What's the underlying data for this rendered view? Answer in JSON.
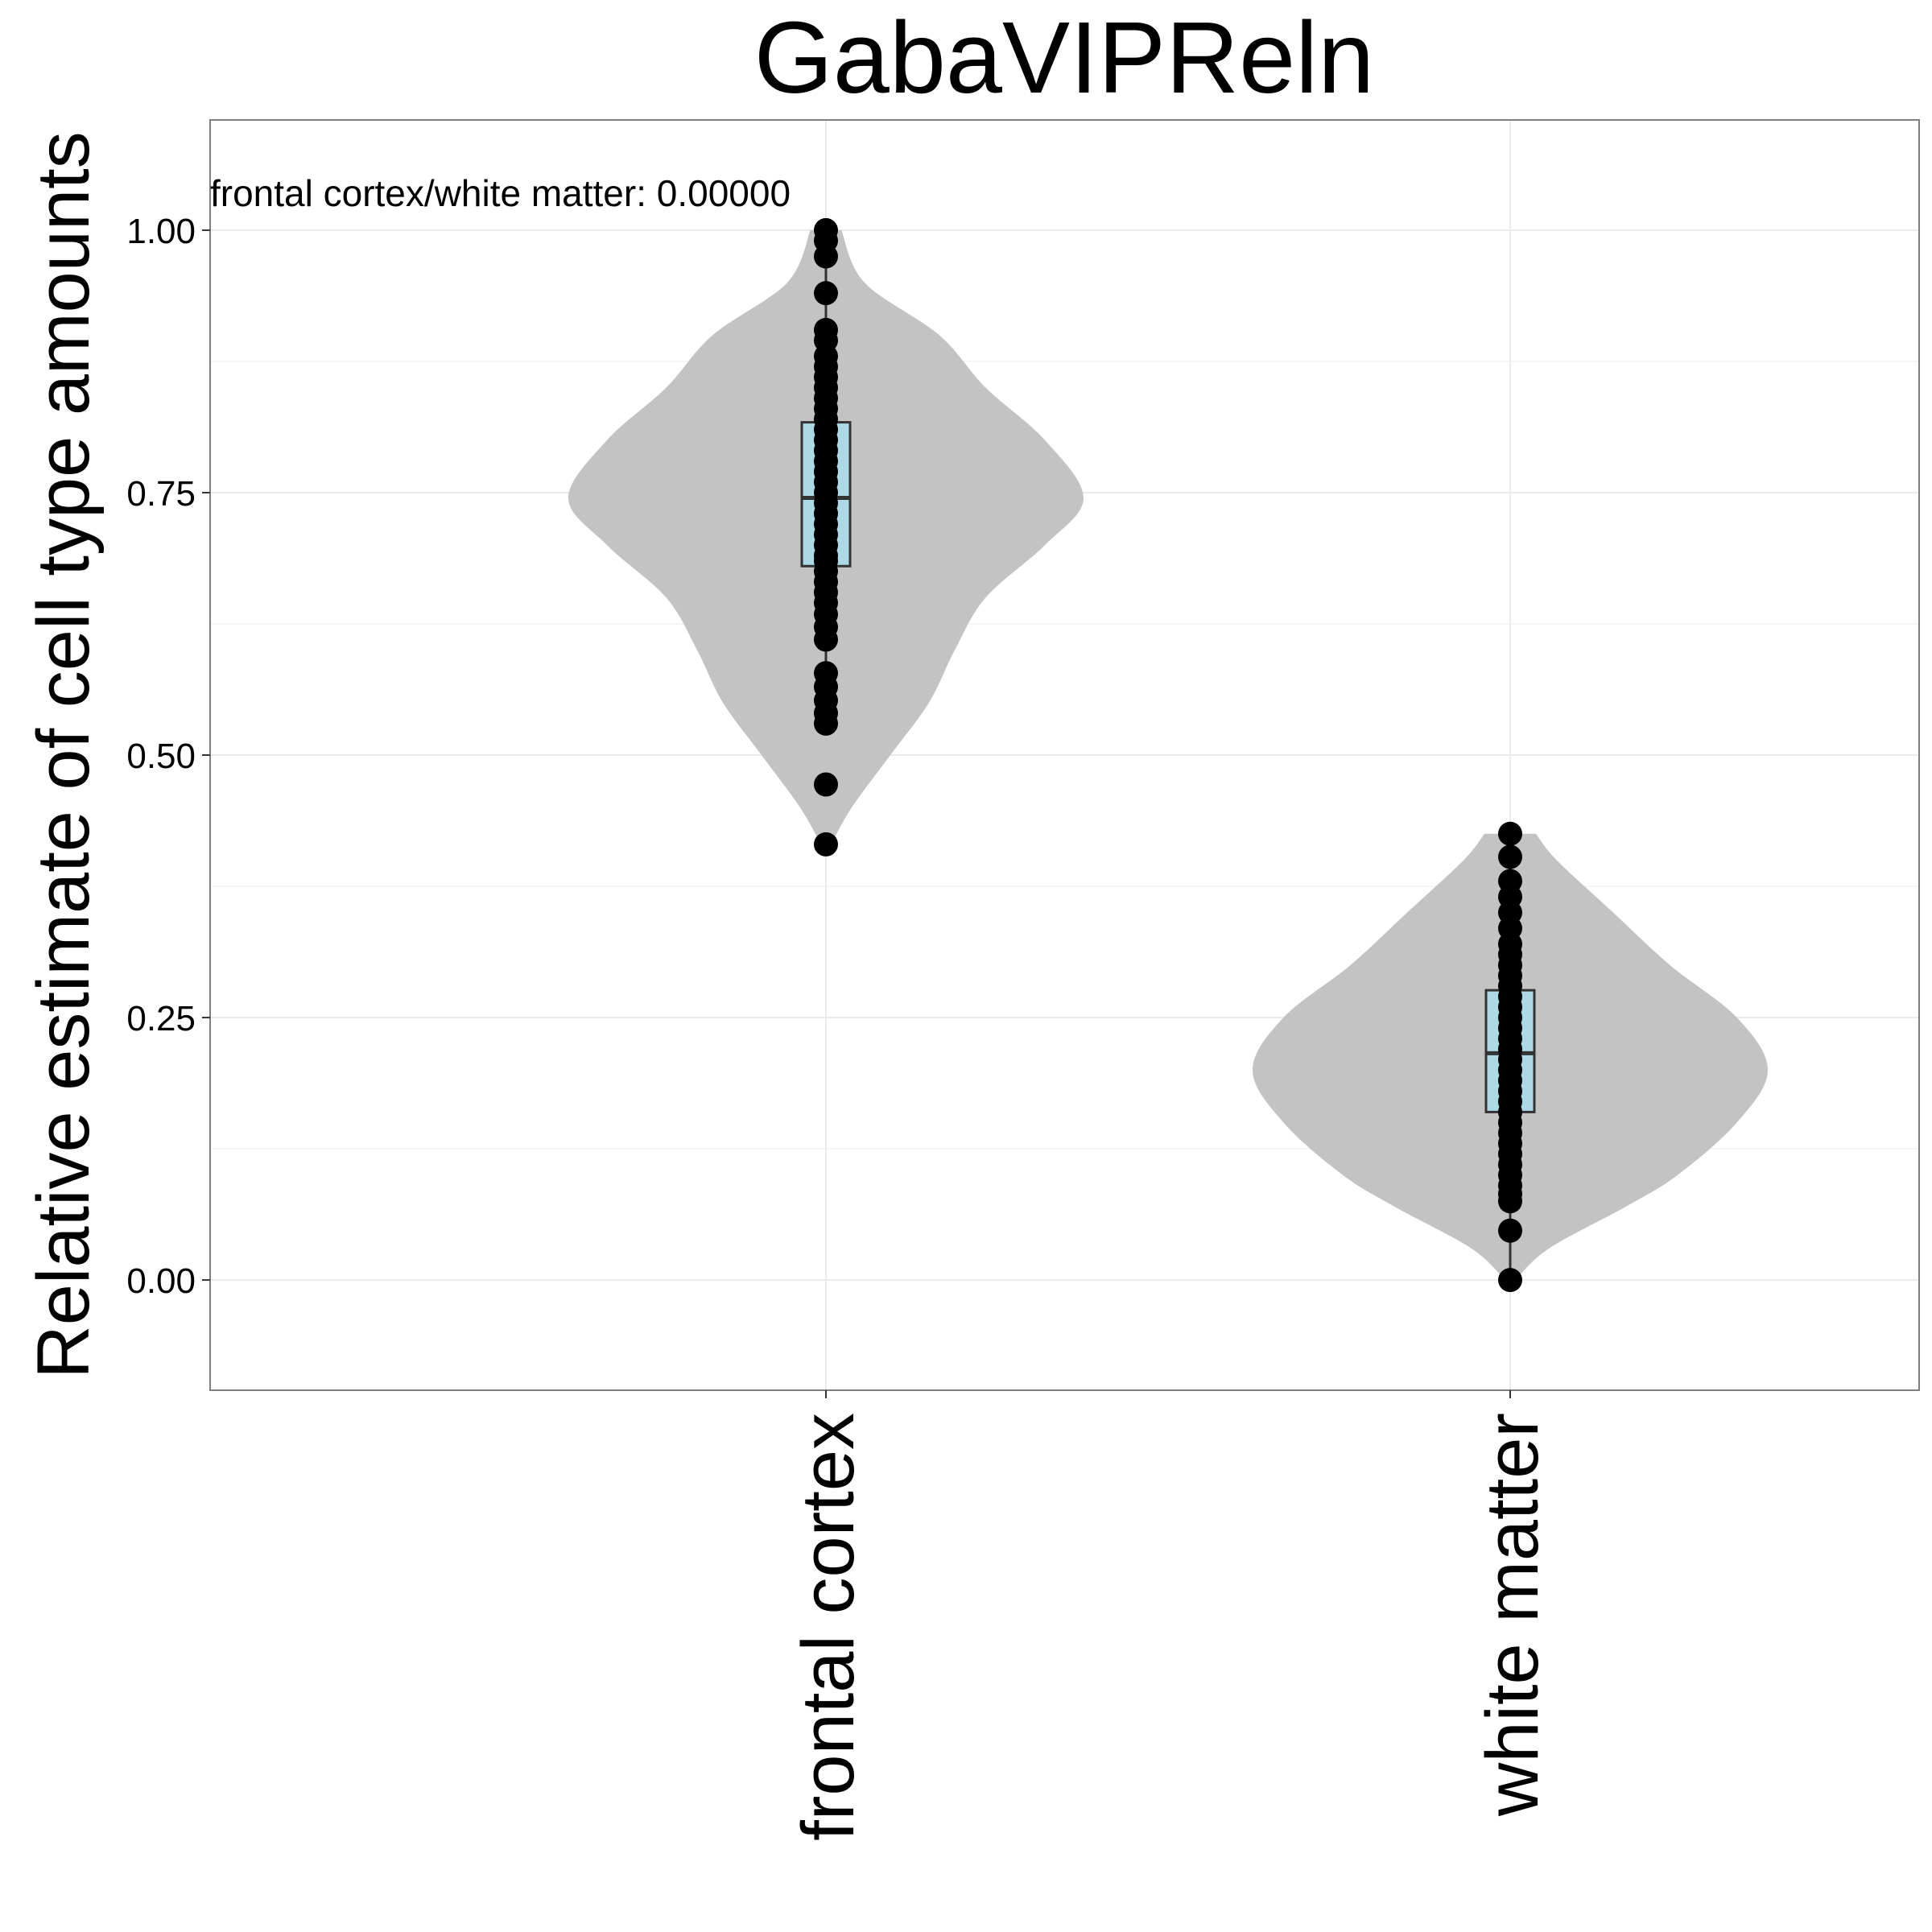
{
  "chart_data": {
    "type": "violin",
    "title": "GabaVIPReln",
    "xlabel": "",
    "ylabel": "Relative estimate of cell type amounts",
    "categories": [
      "frontal cortex",
      "white matter"
    ],
    "ylim": [
      -0.105,
      1.105
    ],
    "yticks": [
      0,
      0.25,
      0.5,
      0.75,
      1
    ],
    "ytick_labels": [
      "0.00",
      "0.25",
      "0.50",
      "0.75",
      "1.00"
    ],
    "grid": true,
    "annotation": "frontal cortex/white matter: 0.00000",
    "colors": {
      "violin": "#c3c3c3",
      "box": "#add8e6",
      "points": "#000000",
      "grid": "#ebebeb",
      "border": "#7f7f7f"
    },
    "groups": [
      {
        "name": "frontal cortex",
        "box": {
          "q1": 0.68,
          "median": 0.745,
          "q3": 0.817,
          "whisker_low": 0.527,
          "whisker_high": 1.0
        },
        "violin": {
          "y": [
            0.415,
            0.45,
            0.5,
            0.55,
            0.6,
            0.65,
            0.7,
            0.745,
            0.8,
            0.85,
            0.9,
            0.95,
            1.0
          ],
          "halfwidth": [
            0.02,
            0.1,
            0.25,
            0.4,
            0.5,
            0.62,
            0.85,
            1.0,
            0.85,
            0.62,
            0.44,
            0.15,
            0.06
          ]
        },
        "points": [
          0.415,
          0.472,
          0.53,
          0.54,
          0.552,
          0.565,
          0.578,
          0.61,
          0.622,
          0.634,
          0.645,
          0.655,
          0.665,
          0.675,
          0.685,
          0.69,
          0.7,
          0.71,
          0.72,
          0.73,
          0.74,
          0.75,
          0.76,
          0.77,
          0.78,
          0.79,
          0.8,
          0.81,
          0.82,
          0.83,
          0.84,
          0.85,
          0.86,
          0.87,
          0.88,
          0.895,
          0.905,
          0.94,
          0.975,
          0.99,
          1.0
        ]
      },
      {
        "name": "white matter",
        "box": {
          "q1": 0.16,
          "median": 0.216,
          "q3": 0.276,
          "whisker_low": 0.0,
          "whisker_high": 0.425
        },
        "violin": {
          "y": [
            0.0,
            0.03,
            0.07,
            0.1,
            0.15,
            0.2,
            0.25,
            0.3,
            0.35,
            0.4,
            0.425
          ],
          "halfwidth": [
            0.02,
            0.15,
            0.45,
            0.65,
            0.88,
            1.0,
            0.88,
            0.62,
            0.4,
            0.18,
            0.1
          ]
        },
        "points": [
          0.0,
          0.047,
          0.075,
          0.082,
          0.09,
          0.1,
          0.11,
          0.12,
          0.13,
          0.14,
          0.15,
          0.16,
          0.17,
          0.18,
          0.19,
          0.2,
          0.21,
          0.22,
          0.23,
          0.24,
          0.25,
          0.26,
          0.27,
          0.28,
          0.29,
          0.3,
          0.31,
          0.32,
          0.335,
          0.35,
          0.365,
          0.38,
          0.403,
          0.425
        ]
      }
    ]
  }
}
